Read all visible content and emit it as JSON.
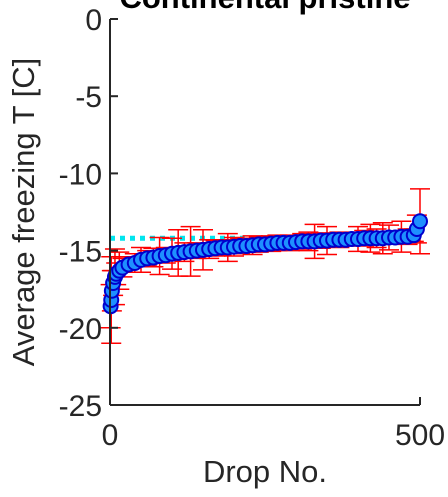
{
  "chart_data": {
    "type": "scatter",
    "title": "Continental pristine",
    "xlabel": "Drop No.",
    "ylabel": "Average freezing T [C]",
    "xlim": [
      0,
      500
    ],
    "ylim": [
      -25,
      0
    ],
    "xticks": [
      "0",
      "500"
    ],
    "yticks": [
      "0",
      "-5",
      "-10",
      "-15",
      "-20",
      "-25"
    ],
    "grid": false,
    "legend": "none",
    "reference_line": {
      "y": -14.2,
      "style": "dotted",
      "color": "#00e5ee"
    },
    "fit_line": {
      "color": "#0000cc",
      "x": [
        1,
        3,
        5,
        8,
        12,
        20,
        30,
        50,
        80,
        120,
        170,
        220,
        280,
        340,
        400,
        450,
        490,
        500
      ],
      "y": [
        -18.7,
        -17.6,
        -17.0,
        -16.6,
        -16.3,
        -16.0,
        -15.8,
        -15.5,
        -15.3,
        -15.1,
        -14.9,
        -14.75,
        -14.6,
        -14.5,
        -14.4,
        -14.3,
        -14.2,
        -13.2
      ]
    },
    "series": [
      {
        "marker_color": "#1e90ff",
        "marker_edge": "#0000cc",
        "errorbar_color": "#ff0000",
        "x": [
          1,
          2,
          3,
          5,
          8,
          10,
          15,
          20,
          30,
          40,
          50,
          60,
          70,
          80,
          90,
          100,
          110,
          120,
          130,
          140,
          150,
          160,
          170,
          180,
          190,
          200,
          210,
          220,
          230,
          240,
          250,
          260,
          270,
          280,
          290,
          300,
          310,
          320,
          330,
          340,
          350,
          360,
          370,
          380,
          390,
          400,
          410,
          420,
          430,
          440,
          450,
          460,
          470,
          480,
          490,
          495,
          500
        ],
        "y": [
          -18.6,
          -18.2,
          -17.6,
          -17.1,
          -16.7,
          -16.5,
          -16.3,
          -16.1,
          -15.9,
          -15.8,
          -15.6,
          -15.5,
          -15.45,
          -15.35,
          -15.3,
          -15.2,
          -15.15,
          -15.1,
          -15.05,
          -15.0,
          -14.95,
          -14.9,
          -14.85,
          -14.8,
          -14.8,
          -14.75,
          -14.7,
          -14.7,
          -14.65,
          -14.6,
          -14.6,
          -14.55,
          -14.5,
          -14.5,
          -14.5,
          -14.45,
          -14.4,
          -14.4,
          -14.4,
          -14.35,
          -14.35,
          -14.3,
          -14.3,
          -14.3,
          -14.25,
          -14.25,
          -14.2,
          -14.2,
          -14.2,
          -14.2,
          -14.15,
          -14.15,
          -14.1,
          -14.1,
          -14.0,
          -13.6,
          -13.1
        ],
        "err": [
          1.4,
          2.8,
          1.3,
          0.8,
          1.8,
          0.7,
          1.2,
          0.6,
          0.5,
          0.6,
          0.8,
          0.5,
          0.6,
          1.2,
          0.5,
          1.0,
          1.5,
          0.6,
          1.6,
          0.5,
          1.3,
          0.6,
          0.5,
          0.5,
          0.9,
          0.6,
          0.5,
          0.4,
          0.6,
          0.5,
          0.4,
          0.5,
          0.5,
          0.4,
          0.5,
          0.4,
          0.5,
          0.6,
          1.1,
          0.5,
          0.9,
          0.4,
          0.5,
          0.4,
          0.4,
          0.8,
          0.5,
          0.9,
          0.6,
          1.0,
          0.8,
          0.4,
          1.0,
          0.5,
          0.4,
          0.9,
          2.1
        ]
      }
    ]
  }
}
